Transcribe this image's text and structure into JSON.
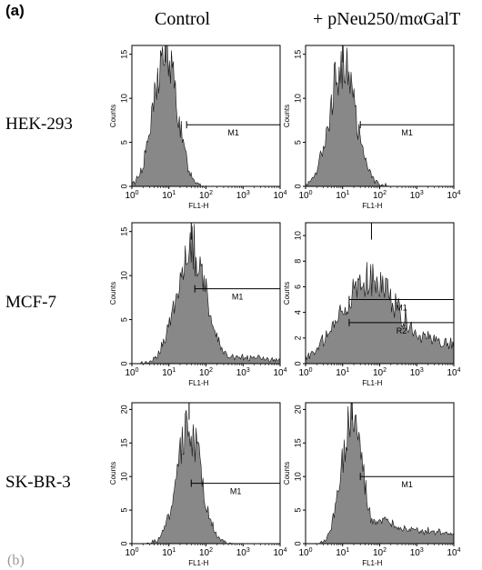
{
  "panel_label": "(a)",
  "columns": [
    "Control",
    "+ pNeu250/mαGalT"
  ],
  "rows": [
    "HEK-293",
    "MCF-7",
    "SK-BR-3"
  ],
  "chart_data": [
    {
      "type": "area",
      "row": "HEK-293",
      "column": "Control",
      "xlabel": "FL1-H",
      "ylabel": "Counts",
      "xscale": "log",
      "xlim": [
        1,
        10000
      ],
      "ylim": [
        0,
        16
      ],
      "yticks": [
        0,
        5,
        10,
        15
      ],
      "peak_x": 8,
      "peak_y": 15,
      "spread": 0.32,
      "tail": 0,
      "markers": [
        {
          "label": "M1",
          "x_range": [
            30,
            10000
          ],
          "y": 7
        }
      ],
      "fill_color": "#888888"
    },
    {
      "type": "area",
      "row": "HEK-293",
      "column": "+ pNeu250/mαGalT",
      "xlabel": "FL1-H",
      "ylabel": "Counts",
      "xscale": "log",
      "xlim": [
        1,
        10000
      ],
      "ylim": [
        0,
        16
      ],
      "yticks": [
        0,
        5,
        10,
        15
      ],
      "peak_x": 10,
      "peak_y": 14,
      "spread": 0.35,
      "tail": 0,
      "markers": [
        {
          "label": "M1",
          "x_range": [
            30,
            10000
          ],
          "y": 7
        }
      ],
      "fill_color": "#888888"
    },
    {
      "type": "area",
      "row": "MCF-7",
      "column": "Control",
      "xlabel": "FL1-H",
      "ylabel": "Counts",
      "xscale": "log",
      "xlim": [
        1,
        10000
      ],
      "ylim": [
        0,
        16
      ],
      "yticks": [
        0,
        5,
        10,
        15
      ],
      "peak_x": 40,
      "peak_y": 13.5,
      "spread": 0.4,
      "tail": 0.1,
      "markers": [
        {
          "label": "M1",
          "x_range": [
            50,
            10000
          ],
          "y": 8.5
        }
      ],
      "fill_color": "#888888"
    },
    {
      "type": "area",
      "row": "MCF-7",
      "column": "+ pNeu250/mαGalT",
      "xlabel": "FL1-H",
      "ylabel": "Counts",
      "xscale": "log",
      "xlim": [
        1,
        10000
      ],
      "ylim": [
        0,
        11
      ],
      "yticks": [
        0,
        2,
        4,
        6,
        8,
        10
      ],
      "peak_x": 60,
      "peak_y": 6.5,
      "spread": 0.8,
      "tail": 0.6,
      "markers": [
        {
          "label": "M1",
          "x_range": [
            15,
            10000
          ],
          "y": 5
        },
        {
          "label": "R2",
          "x_range": [
            15,
            10000
          ],
          "y": 3.2
        }
      ],
      "fill_color": "#888888"
    },
    {
      "type": "area",
      "row": "SK-BR-3",
      "column": "Control",
      "xlabel": "FL1-H",
      "ylabel": "Counts",
      "xscale": "log",
      "xlim": [
        1,
        10000
      ],
      "ylim": [
        0,
        21
      ],
      "yticks": [
        0,
        5,
        10,
        15,
        20
      ],
      "peak_x": 35,
      "peak_y": 17,
      "spread": 0.33,
      "tail": 0,
      "markers": [
        {
          "label": "M1",
          "x_range": [
            40,
            10000
          ],
          "y": 9
        }
      ],
      "fill_color": "#888888"
    },
    {
      "type": "area",
      "row": "SK-BR-3",
      "column": "+ pNeu250/mαGalT",
      "xlabel": "FL1-H",
      "ylabel": "Counts",
      "xscale": "log",
      "xlim": [
        1,
        10000
      ],
      "ylim": [
        0,
        21
      ],
      "yticks": [
        0,
        5,
        10,
        15,
        20
      ],
      "peak_x": 18,
      "peak_y": 19,
      "spread": 0.28,
      "tail": 0.25,
      "markers": [
        {
          "label": "M1",
          "x_range": [
            30,
            10000
          ],
          "y": 10
        }
      ],
      "fill_color": "#888888"
    }
  ]
}
